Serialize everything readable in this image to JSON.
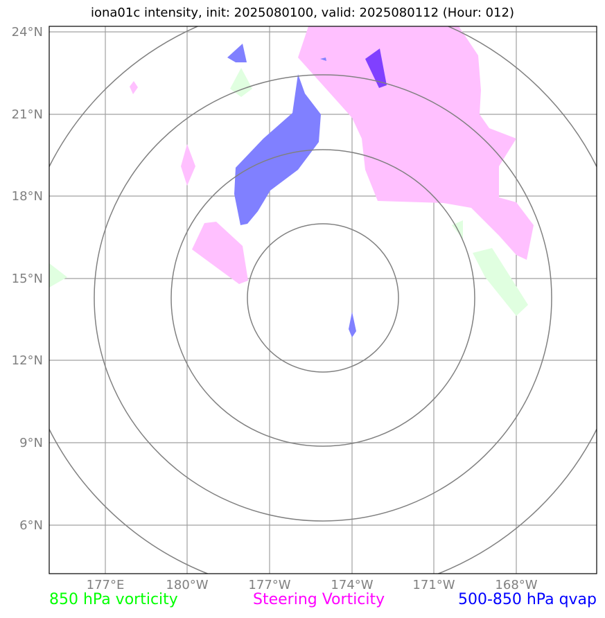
{
  "title": "iona01c intensity, init: 2025080100, valid: 2025080112 (Hour: 012)",
  "axes": {
    "lat_labels": [
      "24°N",
      "21°N",
      "18°N",
      "15°N",
      "12°N",
      "9°N",
      "6°N"
    ],
    "lon_labels": [
      "177°E",
      "180°W",
      "177°W",
      "174°W",
      "171°W",
      "168°W"
    ]
  },
  "legend": {
    "vorticity_850": {
      "label": "850 hPa vorticity",
      "color": "#00ff00"
    },
    "steering": {
      "label": "Steering Vorticity",
      "color": "#ff00ff"
    },
    "qvap": {
      "label": "500-850 hPa qvap",
      "color": "#0000ff"
    }
  },
  "fill_colors": {
    "vorticity_850": "#e0ffe0",
    "steering": "#ffc0ff",
    "qvap": "#8080ff",
    "qvap_strong": "#8040ff"
  }
}
